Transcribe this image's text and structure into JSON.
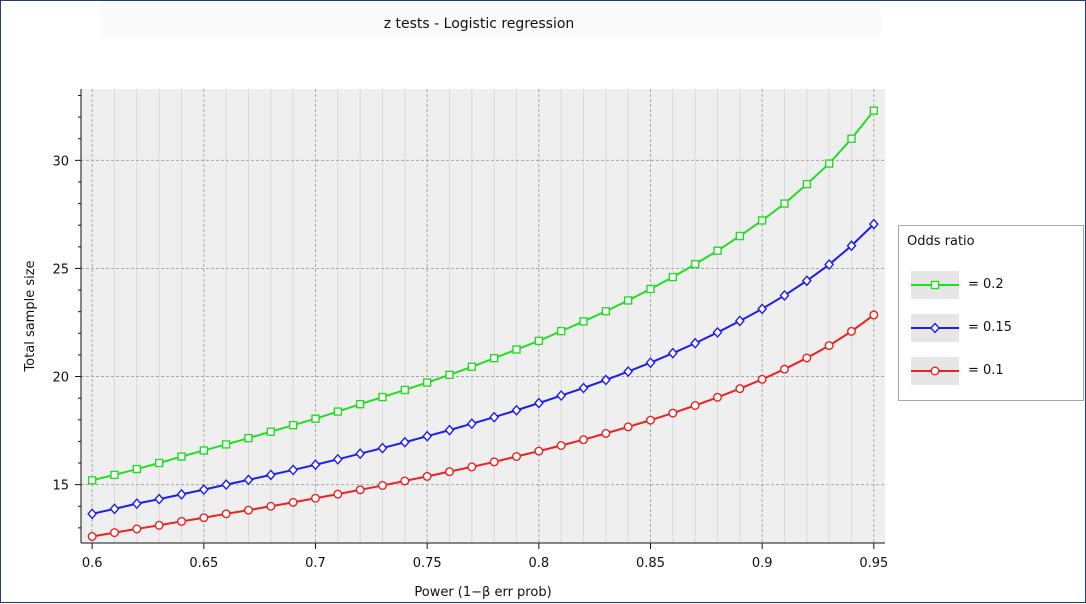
{
  "chart_data": {
    "type": "line",
    "title": "z tests - Logistic regression",
    "xlabel": "Power (1−β err prob)",
    "ylabel": "Total sample size",
    "xlim": [
      0.595,
      0.955
    ],
    "ylim": [
      12.3,
      33.3
    ],
    "xticks": [
      0.6,
      0.65,
      0.7,
      0.75,
      0.8,
      0.85,
      0.9,
      0.95
    ],
    "xtick_labels": [
      "0.6",
      "0.65",
      "0.7",
      "0.75",
      "0.8",
      "0.85",
      "0.9",
      "0.95"
    ],
    "yticks": [
      15,
      20,
      25,
      30
    ],
    "ytick_labels": [
      "15",
      "20",
      "25",
      "30"
    ],
    "grid": true,
    "legend_position": "right",
    "legend_title": "Odds ratio",
    "x": [
      0.6,
      0.61,
      0.62,
      0.63,
      0.64,
      0.65,
      0.66,
      0.67,
      0.68,
      0.69,
      0.7,
      0.71,
      0.72,
      0.73,
      0.74,
      0.75,
      0.76,
      0.77,
      0.78,
      0.79,
      0.8,
      0.81,
      0.82,
      0.83,
      0.84,
      0.85,
      0.86,
      0.87,
      0.88,
      0.89,
      0.9,
      0.91,
      0.92,
      0.93,
      0.94,
      0.95
    ],
    "series": [
      {
        "name": "= 0.2",
        "color": "#22dd22",
        "marker": "square",
        "values": [
          15.2,
          15.45,
          15.72,
          16.0,
          16.3,
          16.58,
          16.86,
          17.15,
          17.45,
          17.75,
          18.05,
          18.38,
          18.72,
          19.05,
          19.38,
          19.72,
          20.08,
          20.45,
          20.85,
          21.25,
          21.65,
          22.1,
          22.55,
          23.02,
          23.52,
          24.05,
          24.6,
          25.2,
          25.82,
          26.5,
          27.22,
          28.0,
          28.9,
          29.85,
          31.0,
          32.3
        ]
      },
      {
        "name": "= 0.15",
        "color": "#1e1ef0",
        "marker": "diamond",
        "values": [
          13.65,
          13.88,
          14.12,
          14.33,
          14.55,
          14.77,
          15.0,
          15.22,
          15.45,
          15.68,
          15.92,
          16.17,
          16.43,
          16.69,
          16.96,
          17.24,
          17.52,
          17.82,
          18.12,
          18.44,
          18.77,
          19.12,
          19.47,
          19.84,
          20.23,
          20.64,
          21.08,
          21.54,
          22.04,
          22.57,
          23.13,
          23.75,
          24.43,
          25.18,
          26.05,
          27.05
        ]
      },
      {
        "name": "= 0.1",
        "color": "#ee2020",
        "marker": "circle",
        "values": [
          12.6,
          12.78,
          12.95,
          13.12,
          13.3,
          13.47,
          13.65,
          13.82,
          14.0,
          14.18,
          14.37,
          14.56,
          14.76,
          14.96,
          15.17,
          15.38,
          15.6,
          15.82,
          16.05,
          16.3,
          16.55,
          16.81,
          17.08,
          17.37,
          17.67,
          17.98,
          18.31,
          18.66,
          19.04,
          19.44,
          19.87,
          20.34,
          20.86,
          21.43,
          22.09,
          22.85
        ]
      }
    ]
  }
}
